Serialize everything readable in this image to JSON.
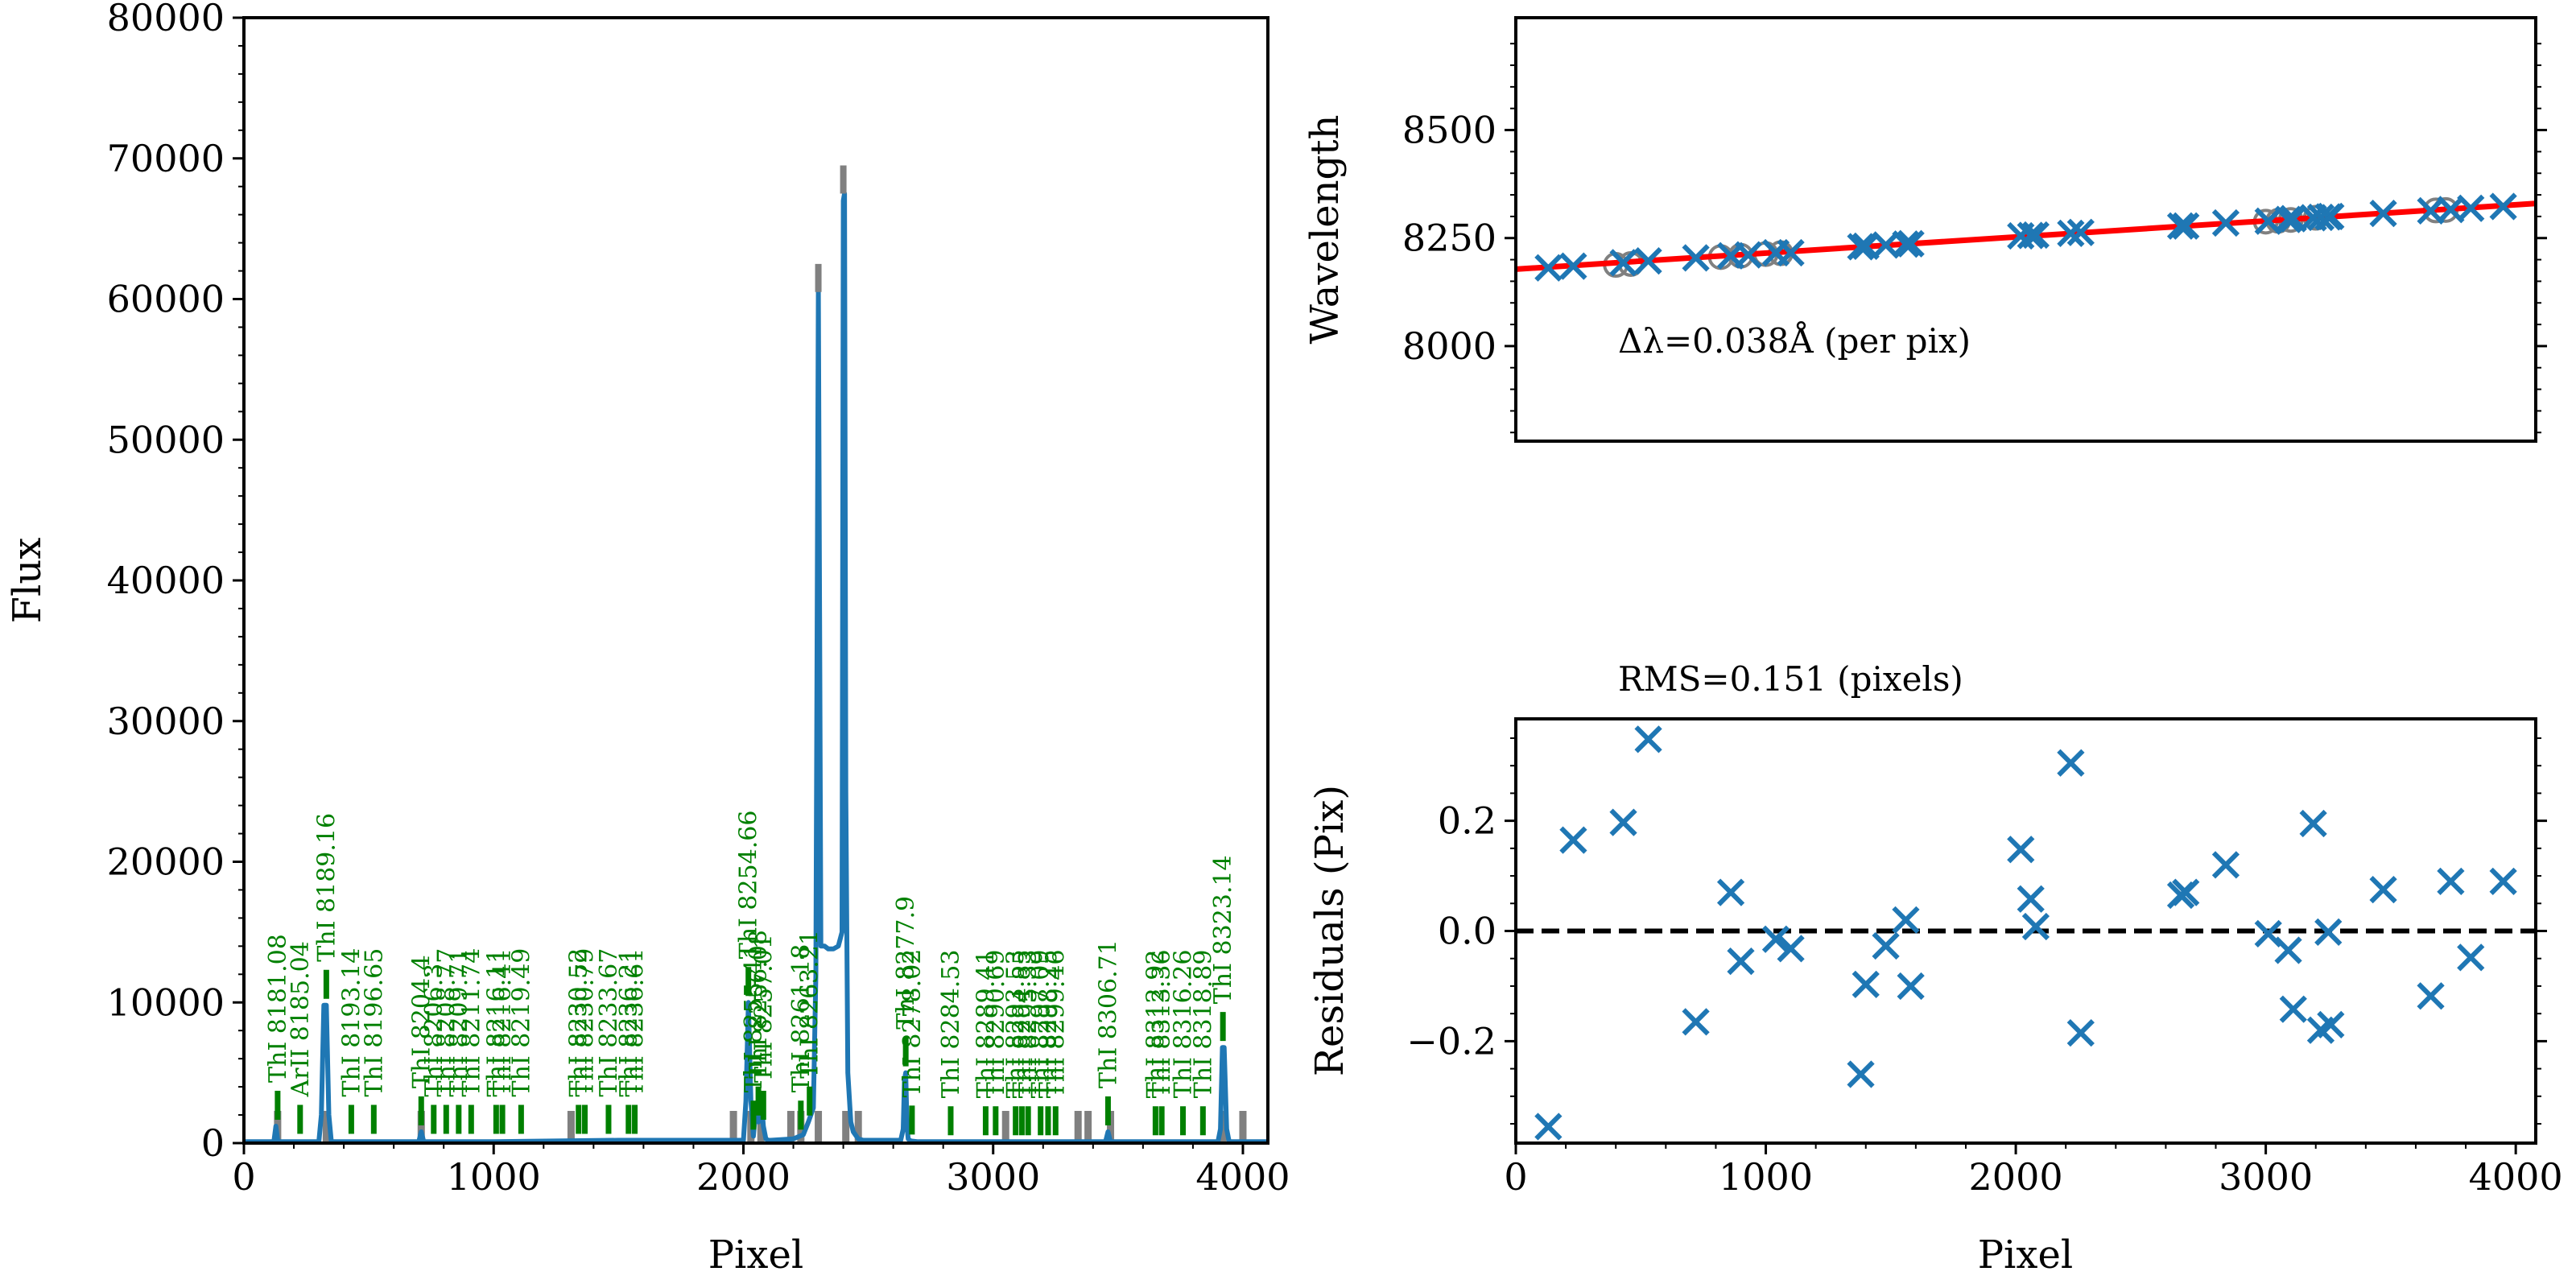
{
  "colors": {
    "spectrum": "#1f77b4",
    "line_marker": "#008000",
    "unmatched_marker": "#808080",
    "fit": "#ff0000",
    "points": "#1f77b4",
    "zero_line": "#000000"
  },
  "chart_data": [
    {
      "id": "spectrum",
      "type": "line",
      "title": "",
      "xlabel": "Pixel",
      "ylabel": "Flux",
      "xlim": [
        0,
        4100
      ],
      "ylim": [
        0,
        80000
      ],
      "xticks": [
        "0",
        "1000",
        "2000",
        "3000",
        "4000"
      ],
      "yticks": [
        "0",
        "10000",
        "20000",
        "30000",
        "40000",
        "50000",
        "60000",
        "70000",
        "80000"
      ],
      "series": [
        {
          "x": [
            0,
            120,
            128,
            136,
            150,
            300,
            310,
            320,
            330,
            340,
            350,
            400,
            700,
            710,
            720,
            730,
            1000,
            1500,
            2000,
            2010,
            2020,
            2030,
            2040,
            2050,
            2060,
            2070,
            2080,
            2090,
            2100,
            2110,
            2200,
            2240,
            2260,
            2280,
            2290,
            2300,
            2310,
            2325,
            2340,
            2360,
            2380,
            2395,
            2400,
            2405,
            2410,
            2418,
            2430,
            2440,
            2460,
            2480,
            2500,
            2600,
            2630,
            2640,
            2645,
            2650,
            2655,
            2660,
            2670,
            2700,
            3000,
            3400,
            3450,
            3460,
            3470,
            3480,
            3900,
            3910,
            3918,
            3925,
            3935,
            3945,
            4000,
            4100
          ],
          "values": [
            100,
            100,
            1200,
            100,
            100,
            100,
            2000,
            9800,
            9800,
            2000,
            100,
            100,
            100,
            800,
            100,
            100,
            100,
            200,
            200,
            3000,
            10000,
            3000,
            500,
            2500,
            1500,
            3500,
            1200,
            300,
            200,
            200,
            300,
            600,
            1500,
            2500,
            12000,
            60500,
            14000,
            14000,
            13800,
            13800,
            14000,
            15000,
            67000,
            67500,
            25000,
            5000,
            1500,
            800,
            300,
            200,
            200,
            200,
            200,
            1000,
            4500,
            5000,
            1200,
            300,
            150,
            100,
            100,
            100,
            100,
            800,
            100,
            100,
            100,
            1000,
            6800,
            6800,
            1000,
            100,
            100,
            100
          ]
        }
      ],
      "line_labels": [
        {
          "label": "ThI 8181.08",
          "x": 135,
          "y": 1200
        },
        {
          "label": "ArII 8185.04",
          "x": 225,
          "y": 200
        },
        {
          "label": "ThI 8189.16",
          "x": 330,
          "y": 9800
        },
        {
          "label": "ThI 8193.14",
          "x": 430,
          "y": 200
        },
        {
          "label": "ThI 8196.65",
          "x": 520,
          "y": 200
        },
        {
          "label": "ThI 8204.4",
          "x": 710,
          "y": 800
        },
        {
          "label": "ThI 8206.3",
          "x": 760,
          "y": 200
        },
        {
          "label": "ThI 8208.77",
          "x": 810,
          "y": 200
        },
        {
          "label": "ThI 8209.71",
          "x": 860,
          "y": 200
        },
        {
          "label": "ThI 8211.74",
          "x": 910,
          "y": 200
        },
        {
          "label": "ThI 8216.11",
          "x": 1010,
          "y": 200
        },
        {
          "label": "ThI 8216.41",
          "x": 1035,
          "y": 200
        },
        {
          "label": "ThI 8219.49",
          "x": 1110,
          "y": 200
        },
        {
          "label": "ThI 8230.52",
          "x": 1340,
          "y": 200
        },
        {
          "label": "ThI 8230.79",
          "x": 1365,
          "y": 200
        },
        {
          "label": "ThI 8233.67",
          "x": 1460,
          "y": 200
        },
        {
          "label": "ThI 8236.21",
          "x": 1540,
          "y": 200
        },
        {
          "label": "ThI 8236.61",
          "x": 1565,
          "y": 200
        },
        {
          "label": "ThI 8254.66",
          "x": 2020,
          "y": 10000
        },
        {
          "label": "ThI 8255.41",
          "x": 2040,
          "y": 500
        },
        {
          "label": "ThI 8256.08",
          "x": 2060,
          "y": 1500
        },
        {
          "label": "ThI 8257.01",
          "x": 2080,
          "y": 1200
        },
        {
          "label": "ThI 8261.18",
          "x": 2230,
          "y": 500
        },
        {
          "label": "ThI 8263.21",
          "x": 2265,
          "y": 1500
        },
        {
          "label": "ThI 8277.9",
          "x": 2650,
          "y": 5000
        },
        {
          "label": "ThI 8278.02",
          "x": 2675,
          "y": 150
        },
        {
          "label": "ThI 8284.53",
          "x": 2830,
          "y": 100
        },
        {
          "label": "ThI 8289.41",
          "x": 2970,
          "y": 100
        },
        {
          "label": "ThI 8290.69",
          "x": 3010,
          "y": 100
        },
        {
          "label": "ThI 8293.53",
          "x": 3090,
          "y": 100
        },
        {
          "label": "ThI 8294.85",
          "x": 3115,
          "y": 100
        },
        {
          "label": "ThI 8295.33",
          "x": 3140,
          "y": 100
        },
        {
          "label": "ThI 8297.09",
          "x": 3190,
          "y": 100
        },
        {
          "label": "ThI 8298.25",
          "x": 3220,
          "y": 100
        },
        {
          "label": "ThI 8299.46",
          "x": 3250,
          "y": 100
        },
        {
          "label": "ThI 8306.71",
          "x": 3460,
          "y": 800
        },
        {
          "label": "ThI 8312.92",
          "x": 3650,
          "y": 100
        },
        {
          "label": "ThI 8313.36",
          "x": 3675,
          "y": 100
        },
        {
          "label": "ThI 8316.26",
          "x": 3760,
          "y": 100
        },
        {
          "label": "ThI 8318.89",
          "x": 3840,
          "y": 100
        },
        {
          "label": "ThI 8323.14",
          "x": 3920,
          "y": 6800
        }
      ],
      "unmatched_x": [
        135,
        330,
        710,
        1310,
        1960,
        2030,
        2070,
        2190,
        2230,
        2300,
        2410,
        2460,
        3050,
        3340,
        3380,
        3470,
        3920,
        4000
      ]
    },
    {
      "id": "wavelength_fit",
      "type": "scatter",
      "title": "",
      "xlabel": "",
      "ylabel": "Wavelength",
      "xlim": [
        0,
        4080
      ],
      "ylim": [
        7780,
        8760
      ],
      "yticks": [
        "8000",
        "8250",
        "8500"
      ],
      "annotation": "Δλ=0.038Å (per pix)",
      "fit_line": {
        "x": [
          0,
          4080
        ],
        "y": [
          8178,
          8330
        ]
      },
      "points": {
        "x": [
          130,
          230,
          430,
          530,
          720,
          860,
          930,
          1040,
          1100,
          1380,
          1400,
          1480,
          1560,
          1580,
          2020,
          2060,
          2080,
          2220,
          2260,
          2660,
          2680,
          2840,
          3010,
          3090,
          3110,
          3190,
          3220,
          3250,
          3260,
          3470,
          3660,
          3740,
          3820,
          3950
        ],
        "y": [
          8181,
          8185,
          8193,
          8197,
          8204,
          8209,
          8211,
          8216,
          8216,
          8230,
          8231,
          8234,
          8236,
          8237,
          8255,
          8256,
          8257,
          8261,
          8263,
          8278,
          8278,
          8285,
          8289,
          8293,
          8295,
          8297,
          8298,
          8299,
          8300,
          8307,
          8313,
          8316,
          8319,
          8323
        ]
      },
      "rejected_points": {
        "x": [
          400,
          460,
          820,
          900,
          1000,
          1060,
          3000,
          3050,
          3100,
          3200,
          3680,
          3720
        ],
        "y": [
          8188,
          8190,
          8206,
          8209,
          8213,
          8215,
          8288,
          8290,
          8292,
          8297,
          8314,
          8315
        ]
      }
    },
    {
      "id": "residuals",
      "type": "scatter",
      "title": "RMS=0.151 (pixels)",
      "xlabel": "Pixel",
      "ylabel": "Residuals (Pix)",
      "xlim": [
        0,
        4080
      ],
      "ylim": [
        -0.385,
        0.385
      ],
      "xticks": [
        "0",
        "1000",
        "2000",
        "3000",
        "4000"
      ],
      "yticks": [
        "−0.2",
        "0.0",
        "0.2"
      ],
      "points": {
        "x": [
          130,
          230,
          430,
          530,
          720,
          860,
          900,
          1040,
          1100,
          1380,
          1400,
          1480,
          1560,
          1580,
          2020,
          2060,
          2080,
          2220,
          2260,
          2660,
          2680,
          2840,
          3010,
          3090,
          3110,
          3190,
          3220,
          3250,
          3260,
          3470,
          3660,
          3740,
          3820,
          3950
        ],
        "y": [
          -0.355,
          0.165,
          0.197,
          0.348,
          -0.165,
          0.07,
          -0.055,
          -0.015,
          -0.032,
          -0.26,
          -0.097,
          -0.027,
          0.02,
          -0.1,
          0.148,
          0.058,
          0.008,
          0.305,
          -0.185,
          0.065,
          0.07,
          0.12,
          -0.005,
          -0.035,
          -0.142,
          0.195,
          -0.18,
          -0.002,
          -0.17,
          0.075,
          -0.118,
          0.09,
          -0.048,
          0.09
        ]
      }
    }
  ]
}
